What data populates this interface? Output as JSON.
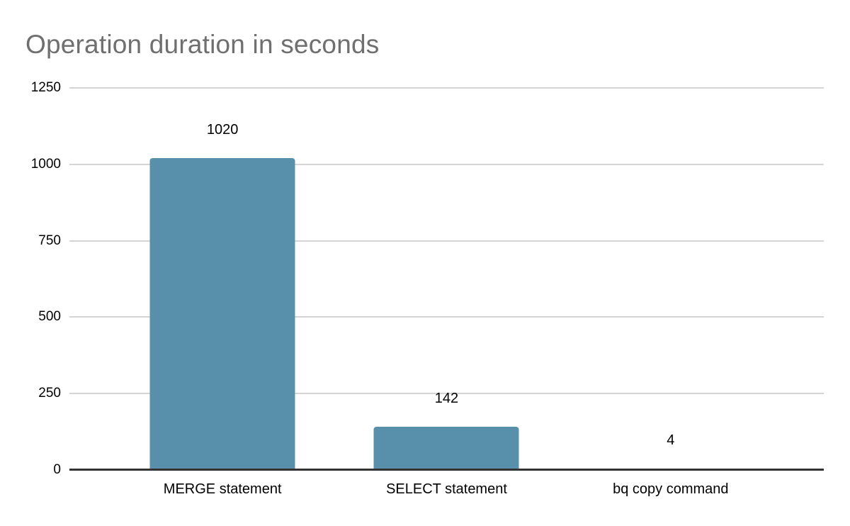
{
  "chart_data": {
    "type": "bar",
    "title": "Operation duration in seconds",
    "categories": [
      "MERGE statement",
      "SELECT statement",
      "bq copy command"
    ],
    "values": [
      1020,
      142,
      4
    ],
    "data_labels": [
      "1020",
      "142",
      "4"
    ],
    "xlabel": "",
    "ylabel": "",
    "ylim": [
      0,
      1250
    ],
    "yticks": [
      0,
      250,
      500,
      750,
      1000,
      1250
    ],
    "grid": true,
    "legend_position": "none",
    "colors": {
      "bar": "#5890ab",
      "title_text": "#6f6f6f",
      "axis_text": "#000000",
      "gridline": "#d5d5d5",
      "baseline": "#333333",
      "background": "#ffffff"
    }
  }
}
